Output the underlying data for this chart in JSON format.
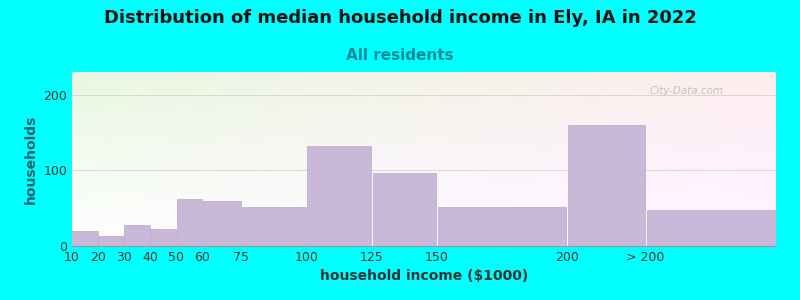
{
  "title": "Distribution of median household income in Ely, IA in 2022",
  "subtitle": "All residents",
  "xlabel": "household income ($1000)",
  "ylabel": "households",
  "background_color": "#00FFFF",
  "bar_color": "#c9b8d8",
  "bar_edge_color": "#b8a8cc",
  "categories": [
    "10",
    "20",
    "30",
    "40",
    "50",
    "60",
    "75",
    "100",
    "125",
    "150",
    "200",
    "> 200"
  ],
  "bin_edges": [
    10,
    20,
    30,
    40,
    50,
    60,
    75,
    100,
    125,
    150,
    200,
    230,
    280
  ],
  "values": [
    20,
    13,
    28,
    22,
    62,
    60,
    52,
    132,
    97,
    52,
    160,
    48
  ],
  "ylim": [
    0,
    230
  ],
  "yticks": [
    0,
    100,
    200
  ],
  "title_fontsize": 13,
  "subtitle_fontsize": 11,
  "label_fontsize": 10,
  "tick_fontsize": 9,
  "watermark_text": "City-Data.com",
  "title_color": "#111111",
  "subtitle_color": "#008899",
  "ylabel_color": "#006070",
  "xlabel_color": "#333333"
}
